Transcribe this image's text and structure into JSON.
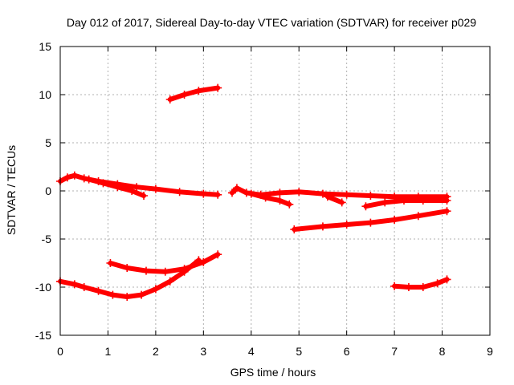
{
  "chart_data": {
    "type": "line",
    "title": "Day 012 of 2017, Sidereal Day-to-day VTEC variation (SDTVAR) for receiver p029",
    "xlabel": "GPS time / hours",
    "ylabel": "SDTVAR / TECUs",
    "xlim": [
      0,
      9
    ],
    "ylim": [
      -15,
      15
    ],
    "xticks": [
      0,
      1,
      2,
      3,
      4,
      5,
      6,
      7,
      8,
      9
    ],
    "yticks": [
      -15,
      -10,
      -5,
      0,
      5,
      10,
      15
    ],
    "grid": true,
    "legend": "none",
    "series_color": "#ff0000",
    "series": [
      {
        "values": [
          [
            2.3,
            9.5
          ],
          [
            2.6,
            10.0
          ],
          [
            2.9,
            10.4
          ],
          [
            3.3,
            10.7
          ]
        ]
      },
      {
        "values": [
          [
            0.0,
            1.0
          ],
          [
            0.15,
            1.4
          ],
          [
            0.3,
            1.6
          ],
          [
            0.5,
            1.3
          ],
          [
            0.8,
            1.0
          ],
          [
            1.2,
            0.7
          ],
          [
            1.6,
            0.4
          ],
          [
            2.0,
            0.2
          ],
          [
            2.5,
            -0.1
          ],
          [
            3.0,
            -0.3
          ],
          [
            3.3,
            -0.4
          ]
        ]
      },
      {
        "values": [
          [
            0.6,
            1.2
          ],
          [
            0.9,
            0.8
          ],
          [
            1.2,
            0.4
          ],
          [
            1.5,
            0.0
          ],
          [
            1.75,
            -0.5
          ]
        ]
      },
      {
        "values": [
          [
            3.6,
            -0.2
          ],
          [
            3.7,
            0.3
          ],
          [
            3.9,
            -0.2
          ],
          [
            4.2,
            -0.4
          ],
          [
            4.6,
            -0.2
          ],
          [
            5.0,
            -0.1
          ],
          [
            5.5,
            -0.3
          ],
          [
            6.0,
            -0.4
          ],
          [
            6.5,
            -0.5
          ],
          [
            7.0,
            -0.6
          ],
          [
            7.5,
            -0.6
          ],
          [
            8.1,
            -0.6
          ]
        ]
      },
      {
        "values": [
          [
            4.0,
            -0.3
          ],
          [
            4.3,
            -0.7
          ],
          [
            4.6,
            -1.0
          ],
          [
            4.8,
            -1.4
          ]
        ]
      },
      {
        "values": [
          [
            5.6,
            -0.6
          ],
          [
            5.9,
            -1.2
          ]
        ]
      },
      {
        "values": [
          [
            6.4,
            -1.6
          ],
          [
            6.8,
            -1.2
          ],
          [
            7.2,
            -1.0
          ],
          [
            7.6,
            -1.0
          ],
          [
            8.1,
            -1.0
          ]
        ]
      },
      {
        "values": [
          [
            4.9,
            -4.0
          ],
          [
            5.5,
            -3.7
          ],
          [
            6.0,
            -3.5
          ],
          [
            6.5,
            -3.3
          ],
          [
            7.0,
            -3.0
          ],
          [
            7.5,
            -2.6
          ],
          [
            8.1,
            -2.1
          ]
        ]
      },
      {
        "values": [
          [
            1.05,
            -7.5
          ],
          [
            1.4,
            -8.0
          ],
          [
            1.8,
            -8.3
          ],
          [
            2.2,
            -8.4
          ],
          [
            2.6,
            -8.1
          ],
          [
            3.0,
            -7.4
          ],
          [
            3.3,
            -6.6
          ]
        ]
      },
      {
        "values": [
          [
            0.0,
            -9.4
          ],
          [
            0.3,
            -9.7
          ],
          [
            0.5,
            -10.0
          ],
          [
            0.8,
            -10.4
          ],
          [
            1.1,
            -10.8
          ],
          [
            1.4,
            -11.0
          ],
          [
            1.7,
            -10.8
          ],
          [
            2.0,
            -10.2
          ],
          [
            2.3,
            -9.4
          ],
          [
            2.6,
            -8.4
          ],
          [
            2.9,
            -7.2
          ]
        ]
      },
      {
        "values": [
          [
            7.0,
            -9.9
          ],
          [
            7.3,
            -10.0
          ],
          [
            7.6,
            -10.0
          ],
          [
            7.9,
            -9.6
          ],
          [
            8.1,
            -9.2
          ]
        ]
      }
    ]
  }
}
